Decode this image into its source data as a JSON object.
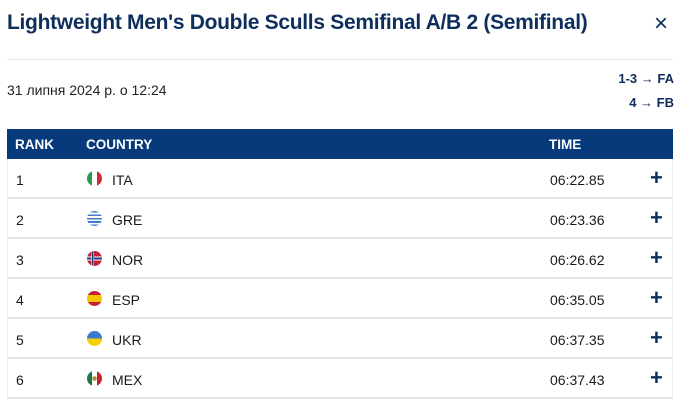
{
  "title": "Lightweight Men's Double Sculls Semifinal A/B 2 (Semifinal)",
  "close_icon": "×",
  "date": "31 липня 2024 р. о 12:24",
  "qualification": [
    "1-3 → FA",
    "4 → FB"
  ],
  "table": {
    "headers": {
      "rank": "RANK",
      "country": "COUNTRY",
      "time": "TIME"
    },
    "rows": [
      {
        "rank": "1",
        "flag": "ITA",
        "country": "ITA",
        "time": "06:22.85",
        "expand": "+"
      },
      {
        "rank": "2",
        "flag": "GRE",
        "country": "GRE",
        "time": "06:23.36",
        "expand": "+"
      },
      {
        "rank": "3",
        "flag": "NOR",
        "country": "NOR",
        "time": "06:26.62",
        "expand": "+"
      },
      {
        "rank": "4",
        "flag": "ESP",
        "country": "ESP",
        "time": "06:35.05",
        "expand": "+"
      },
      {
        "rank": "5",
        "flag": "UKR",
        "country": "UKR",
        "time": "06:37.35",
        "expand": "+"
      },
      {
        "rank": "6",
        "flag": "MEX",
        "country": "MEX",
        "time": "06:37.43",
        "expand": "+"
      }
    ]
  },
  "colors": {
    "header_bg": "#073a7a",
    "title": "#0e2e5c"
  }
}
